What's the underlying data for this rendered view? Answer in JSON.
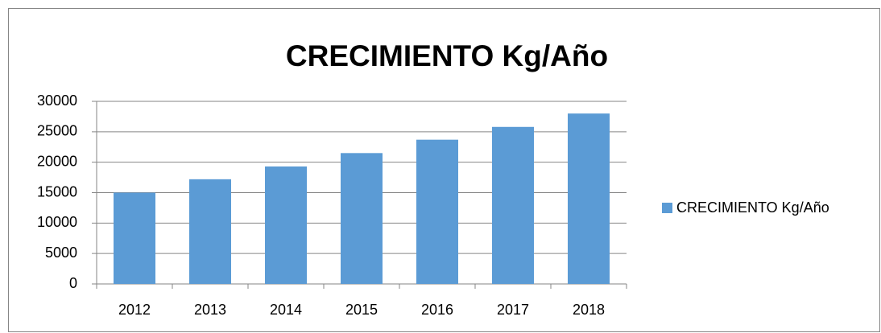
{
  "chart_data": {
    "type": "bar",
    "title": "CRECIMIENTO Kg/Año",
    "categories": [
      "2012",
      "2013",
      "2014",
      "2015",
      "2016",
      "2017",
      "2018"
    ],
    "series": [
      {
        "name": "CRECIMIENTO Kg/Año",
        "color": "#5b9bd5",
        "values": [
          15000,
          17200,
          19300,
          21500,
          23700,
          25800,
          28000
        ]
      }
    ],
    "ylim": [
      0,
      30000
    ],
    "yticks": [
      0,
      5000,
      10000,
      15000,
      20000,
      25000,
      30000
    ],
    "grid": true,
    "legend": "right"
  }
}
